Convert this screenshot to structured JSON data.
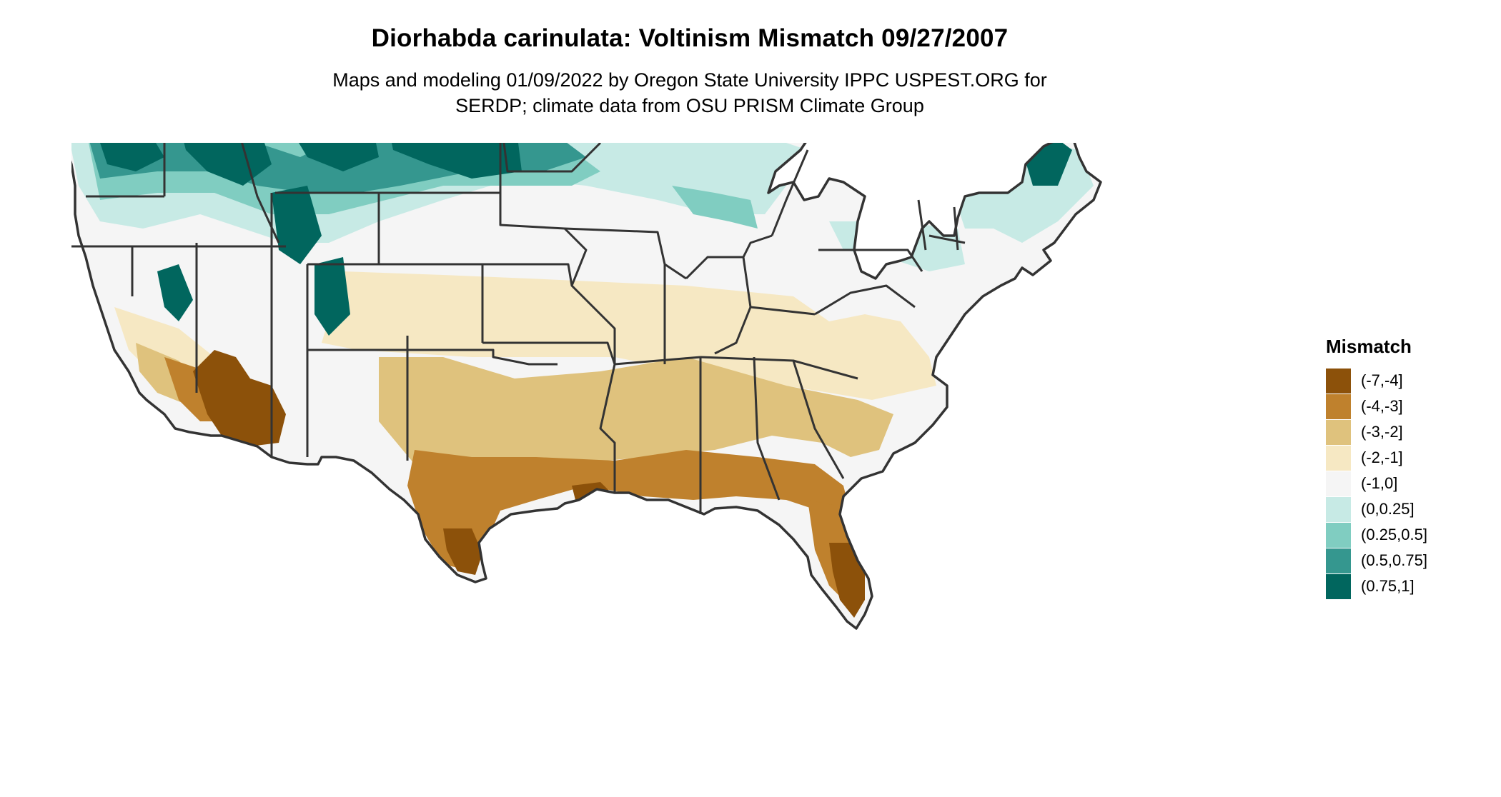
{
  "map": {
    "title": "Diorhabda carinulata: Voltinism Mismatch 09/27/2007",
    "subtitle_line1": "Maps and modeling 01/09/2022 by Oregon State University IPPC USPEST.ORG for",
    "subtitle_line2": "SERDP; climate data from OSU PRISM Climate Group",
    "region": "Contiguous United States",
    "legend": {
      "title": "Mismatch",
      "items": [
        {
          "label": "(-7,-4]",
          "color": "#8c510a"
        },
        {
          "label": "(-4,-3]",
          "color": "#bf812d"
        },
        {
          "label": "(-3,-2]",
          "color": "#dfc27d"
        },
        {
          "label": "(-2,-1]",
          "color": "#f6e8c3"
        },
        {
          "label": "(-1,0]",
          "color": "#f5f5f5"
        },
        {
          "label": "(0,0.25]",
          "color": "#c7eae5"
        },
        {
          "label": "(0.25,0.5]",
          "color": "#80cdc1"
        },
        {
          "label": "(0.5,0.75]",
          "color": "#35978f"
        },
        {
          "label": "(0.75,1]",
          "color": "#01665e"
        }
      ]
    },
    "boundary_color": "#333333"
  }
}
